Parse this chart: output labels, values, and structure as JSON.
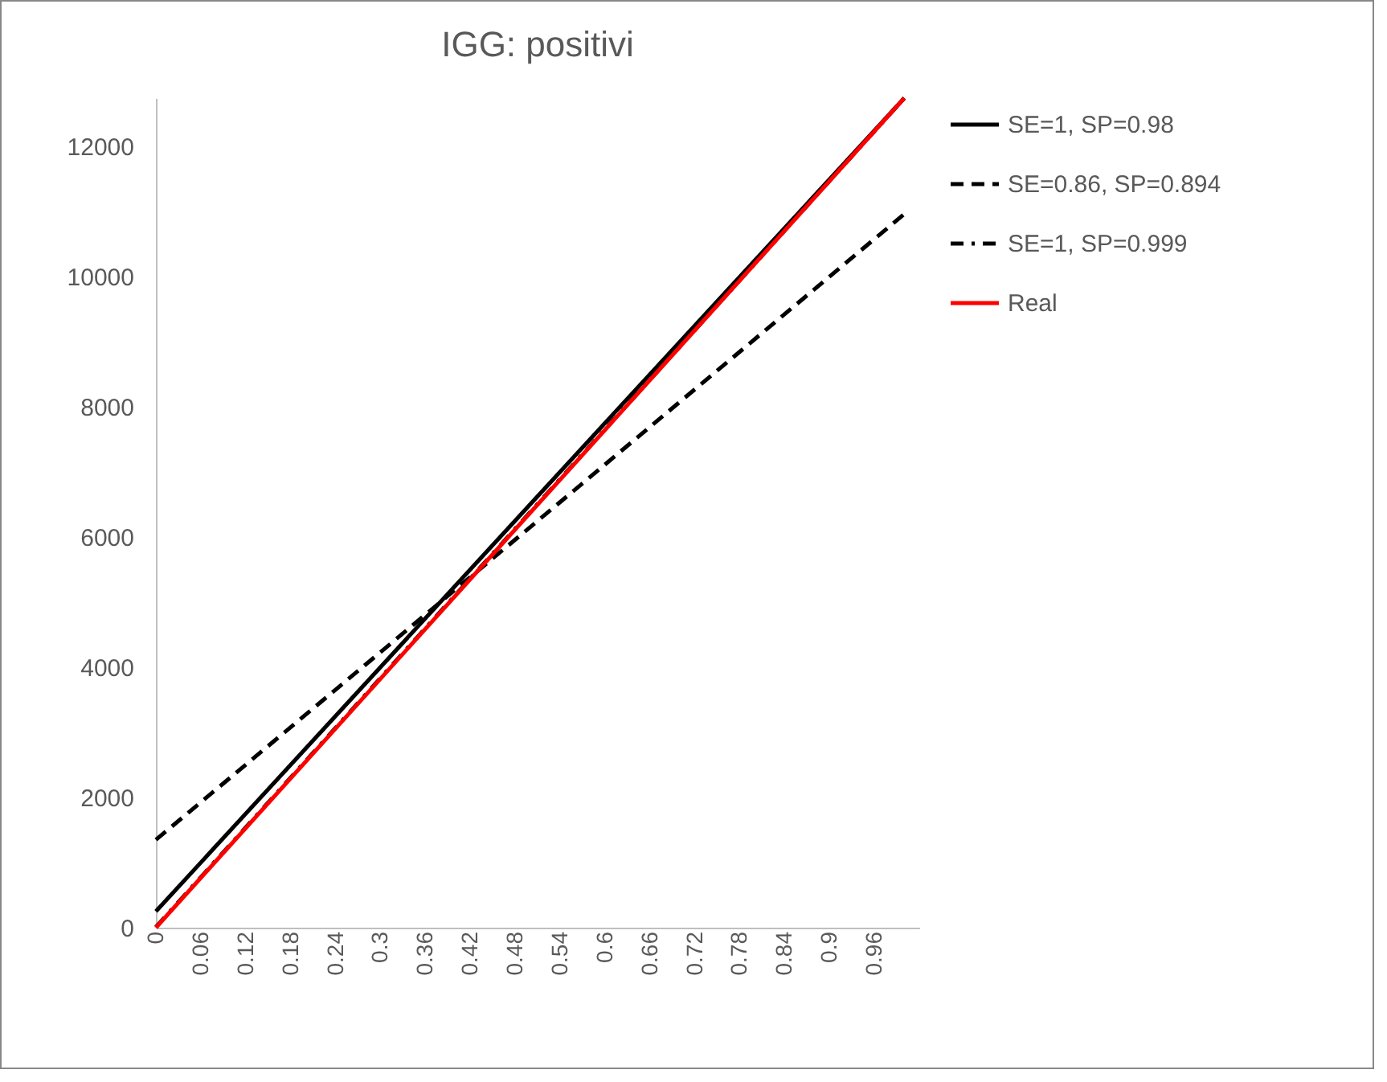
{
  "chart_data": {
    "type": "line",
    "title": "IGG: positivi",
    "series": [
      {
        "name": "SE=1, SP=0.98",
        "color": "#000000",
        "line_style": "solid",
        "x": [
          0,
          0.5,
          1.0
        ],
        "values": [
          250,
          6500,
          12740
        ]
      },
      {
        "name": "SE=0.86, SP=0.894",
        "color": "#000000",
        "line_style": "dashed",
        "x": [
          0,
          0.5,
          1.0
        ],
        "values": [
          1350,
          6150,
          10960
        ]
      },
      {
        "name": "SE=1, SP=0.999",
        "color": "#000000",
        "line_style": "dashdot",
        "x": [
          0,
          0.5,
          1.0
        ],
        "values": [
          10,
          6380,
          12740
        ]
      },
      {
        "name": "Real",
        "color": "#ff0000",
        "line_style": "solid",
        "x": [
          0,
          0.5,
          1.0
        ],
        "values": [
          0,
          6370,
          12740
        ]
      }
    ],
    "xlim": [
      0,
      1.02
    ],
    "xticks": [
      0,
      0.06,
      0.12,
      0.18,
      0.24,
      0.3,
      0.36,
      0.42,
      0.48,
      0.54,
      0.6,
      0.66,
      0.72,
      0.78,
      0.84,
      0.9,
      0.96
    ],
    "ylim": [
      0,
      12740
    ],
    "yticks": [
      0,
      2000,
      4000,
      6000,
      8000,
      10000,
      12000
    ],
    "grid": false,
    "legend": "right",
    "marker": "none"
  }
}
